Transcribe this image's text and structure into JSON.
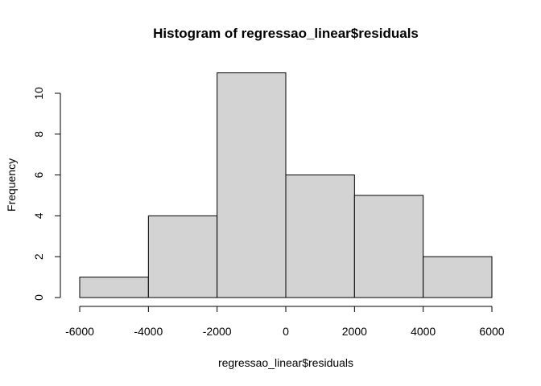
{
  "chart_data": {
    "type": "bar",
    "title": "Histogram of regressao_linear$residuals",
    "xlabel": "regressao_linear$residuals",
    "ylabel": "Frequency",
    "bins": [
      {
        "from": -6000,
        "to": -4000,
        "count": 1
      },
      {
        "from": -4000,
        "to": -2000,
        "count": 4
      },
      {
        "from": -2000,
        "to": 0,
        "count": 11
      },
      {
        "from": 0,
        "to": 2000,
        "count": 6
      },
      {
        "from": 2000,
        "to": 4000,
        "count": 5
      },
      {
        "from": 4000,
        "to": 6000,
        "count": 2
      }
    ],
    "x_ticks": [
      "-6000",
      "-4000",
      "-2000",
      "0",
      "2000",
      "4000",
      "6000"
    ],
    "y_ticks": [
      "0",
      "2",
      "4",
      "6",
      "8",
      "10"
    ],
    "xlim": [
      -6000,
      6000
    ],
    "ylim": [
      0,
      10
    ],
    "grid": false,
    "bar_color": "#d3d3d3",
    "edge_color": "#000000"
  }
}
